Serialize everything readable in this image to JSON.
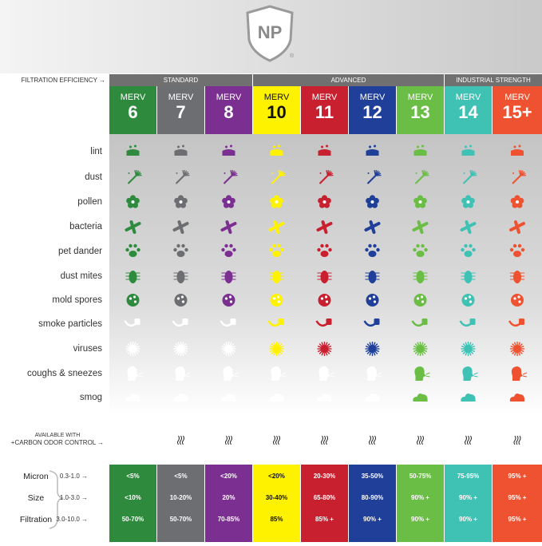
{
  "header": {
    "logo": "NP",
    "logo_mark": "®",
    "filtration_label": "FILTRATION EFFICIENCY →",
    "groups": [
      "STANDARD",
      "ADVANCED",
      "INDUSTRIAL STRENGTH"
    ]
  },
  "columns": [
    {
      "label": "MERV",
      "rating": "6",
      "color": "#2e8b3e",
      "text_color": "#ffffff"
    },
    {
      "label": "MERV",
      "rating": "7",
      "color": "#6d6e71",
      "text_color": "#ffffff"
    },
    {
      "label": "MERV",
      "rating": "8",
      "color": "#7b2f91",
      "text_color": "#ffffff"
    },
    {
      "label": "MERV",
      "rating": "10",
      "color": "#fff200",
      "text_color": "#111111"
    },
    {
      "label": "MERV",
      "rating": "11",
      "color": "#c8202f",
      "text_color": "#ffffff"
    },
    {
      "label": "MERV",
      "rating": "12",
      "color": "#1f3f99",
      "text_color": "#ffffff"
    },
    {
      "label": "MERV",
      "rating": "13",
      "color": "#6abd45",
      "text_color": "#ffffff"
    },
    {
      "label": "MERV",
      "rating": "14",
      "color": "#3fc1b4",
      "text_color": "#ffffff"
    },
    {
      "label": "MERV",
      "rating": "15+",
      "color": "#ee5230",
      "text_color": "#ffffff"
    }
  ],
  "contaminants": [
    "lint",
    "dust",
    "pollen",
    "bacteria",
    "pet dander",
    "dust mites",
    "mold spores",
    "smoke particles",
    "viruses",
    "coughs & sneezes",
    "smog"
  ],
  "odor_control": {
    "line1": "AVAILABLE WITH",
    "line2": "+CARBON ODOR CONTROL →"
  },
  "table": {
    "row_labels": [
      "Micron",
      "Size",
      "Filtration"
    ],
    "ranges": [
      "0.3-1.0 →",
      "1.0-3.0 →",
      "3.0-10.0 →"
    ],
    "rows": [
      [
        "<5%",
        "<5%",
        "<20%",
        "<20%",
        "20-30%",
        "35-50%",
        "50-75%",
        "75-95%",
        "95% +"
      ],
      [
        "<10%",
        "10-20%",
        "20%",
        "30-40%",
        "65-80%",
        "80-90%",
        "90% +",
        "90% +",
        "95% +"
      ],
      [
        "50-70%",
        "50-70%",
        "70-85%",
        "85%",
        "85% +",
        "90% +",
        "90% +",
        "90% +",
        "95% +"
      ]
    ]
  }
}
